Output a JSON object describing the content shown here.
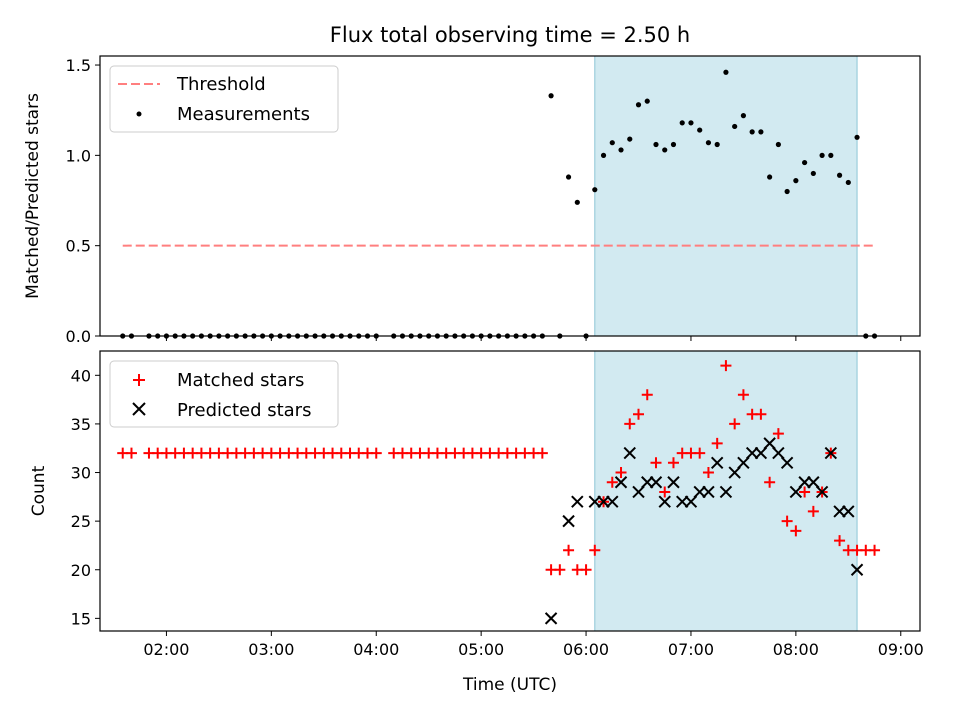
{
  "chart_data": {
    "title": "Flux total observing time = 2.50 h",
    "xlabel": "Time (UTC)",
    "x_ticks": [
      "02:00",
      "03:00",
      "04:00",
      "05:00",
      "06:00",
      "07:00",
      "08:00",
      "09:00"
    ],
    "shaded_span": [
      "06:05",
      "08:35"
    ],
    "colors": {
      "shade": "#add8e6",
      "threshold": "#ff7f7f",
      "measurement": "#000000",
      "matched": "#ff0000",
      "predicted": "#000000"
    },
    "panels": [
      {
        "type": "scatter",
        "ylabel": "Matched/Predicted stars",
        "ylim": [
          0,
          1.55
        ],
        "yticks": [
          "0.0",
          "0.5",
          "1.0",
          "1.5"
        ],
        "legend_location": "upper-left",
        "series": [
          {
            "name": "Threshold",
            "kind": "dashed-line",
            "points": [
              [
                "01:35",
                0.5
              ],
              [
                "08:45",
                0.5
              ]
            ]
          },
          {
            "name": "Measurements",
            "kind": "dots",
            "points": [
              [
                "01:35",
                0
              ],
              [
                "01:40",
                0
              ],
              [
                "01:50",
                0
              ],
              [
                "01:55",
                0
              ],
              [
                "02:00",
                0
              ],
              [
                "02:05",
                0
              ],
              [
                "02:10",
                0
              ],
              [
                "02:15",
                0
              ],
              [
                "02:20",
                0
              ],
              [
                "02:25",
                0
              ],
              [
                "02:30",
                0
              ],
              [
                "02:35",
                0
              ],
              [
                "02:40",
                0
              ],
              [
                "02:45",
                0
              ],
              [
                "02:50",
                0
              ],
              [
                "02:55",
                0
              ],
              [
                "03:00",
                0
              ],
              [
                "03:05",
                0
              ],
              [
                "03:10",
                0
              ],
              [
                "03:15",
                0
              ],
              [
                "03:20",
                0
              ],
              [
                "03:25",
                0
              ],
              [
                "03:30",
                0
              ],
              [
                "03:35",
                0
              ],
              [
                "03:40",
                0
              ],
              [
                "03:45",
                0
              ],
              [
                "03:50",
                0
              ],
              [
                "03:55",
                0
              ],
              [
                "04:00",
                0
              ],
              [
                "04:10",
                0
              ],
              [
                "04:15",
                0
              ],
              [
                "04:20",
                0
              ],
              [
                "04:25",
                0
              ],
              [
                "04:30",
                0
              ],
              [
                "04:35",
                0
              ],
              [
                "04:40",
                0
              ],
              [
                "04:45",
                0
              ],
              [
                "04:50",
                0
              ],
              [
                "04:55",
                0
              ],
              [
                "05:00",
                0
              ],
              [
                "05:05",
                0
              ],
              [
                "05:10",
                0
              ],
              [
                "05:15",
                0
              ],
              [
                "05:20",
                0
              ],
              [
                "05:25",
                0
              ],
              [
                "05:30",
                0
              ],
              [
                "05:35",
                0
              ],
              [
                "05:40",
                1.33
              ],
              [
                "05:45",
                0
              ],
              [
                "05:50",
                0.88
              ],
              [
                "05:55",
                0.74
              ],
              [
                "06:00",
                0
              ],
              [
                "06:05",
                0.81
              ],
              [
                "06:10",
                1.0
              ],
              [
                "06:15",
                1.07
              ],
              [
                "06:20",
                1.03
              ],
              [
                "06:25",
                1.09
              ],
              [
                "06:30",
                1.28
              ],
              [
                "06:35",
                1.3
              ],
              [
                "06:40",
                1.06
              ],
              [
                "06:45",
                1.03
              ],
              [
                "06:50",
                1.06
              ],
              [
                "06:55",
                1.18
              ],
              [
                "07:00",
                1.18
              ],
              [
                "07:05",
                1.14
              ],
              [
                "07:10",
                1.07
              ],
              [
                "07:15",
                1.06
              ],
              [
                "07:20",
                1.46
              ],
              [
                "07:25",
                1.16
              ],
              [
                "07:30",
                1.22
              ],
              [
                "07:35",
                1.13
              ],
              [
                "07:40",
                1.13
              ],
              [
                "07:45",
                0.88
              ],
              [
                "07:50",
                1.06
              ],
              [
                "07:55",
                0.8
              ],
              [
                "08:00",
                0.86
              ],
              [
                "08:05",
                0.96
              ],
              [
                "08:10",
                0.9
              ],
              [
                "08:15",
                1.0
              ],
              [
                "08:20",
                1.0
              ],
              [
                "08:25",
                0.89
              ],
              [
                "08:30",
                0.85
              ],
              [
                "08:35",
                1.1
              ],
              [
                "08:40",
                0
              ],
              [
                "08:45",
                0
              ]
            ]
          }
        ]
      },
      {
        "type": "scatter",
        "ylabel": "Count",
        "ylim": [
          13.7,
          42.5
        ],
        "yticks": [
          "15",
          "20",
          "25",
          "30",
          "35",
          "40"
        ],
        "legend_location": "upper-left",
        "series": [
          {
            "name": "Matched stars",
            "kind": "plus",
            "points": [
              [
                "01:35",
                32
              ],
              [
                "01:40",
                32
              ],
              [
                "01:50",
                32
              ],
              [
                "01:55",
                32
              ],
              [
                "02:00",
                32
              ],
              [
                "02:05",
                32
              ],
              [
                "02:10",
                32
              ],
              [
                "02:15",
                32
              ],
              [
                "02:20",
                32
              ],
              [
                "02:25",
                32
              ],
              [
                "02:30",
                32
              ],
              [
                "02:35",
                32
              ],
              [
                "02:40",
                32
              ],
              [
                "02:45",
                32
              ],
              [
                "02:50",
                32
              ],
              [
                "02:55",
                32
              ],
              [
                "03:00",
                32
              ],
              [
                "03:05",
                32
              ],
              [
                "03:10",
                32
              ],
              [
                "03:15",
                32
              ],
              [
                "03:20",
                32
              ],
              [
                "03:25",
                32
              ],
              [
                "03:30",
                32
              ],
              [
                "03:35",
                32
              ],
              [
                "03:40",
                32
              ],
              [
                "03:45",
                32
              ],
              [
                "03:50",
                32
              ],
              [
                "03:55",
                32
              ],
              [
                "04:00",
                32
              ],
              [
                "04:10",
                32
              ],
              [
                "04:15",
                32
              ],
              [
                "04:20",
                32
              ],
              [
                "04:25",
                32
              ],
              [
                "04:30",
                32
              ],
              [
                "04:35",
                32
              ],
              [
                "04:40",
                32
              ],
              [
                "04:45",
                32
              ],
              [
                "04:50",
                32
              ],
              [
                "04:55",
                32
              ],
              [
                "05:00",
                32
              ],
              [
                "05:05",
                32
              ],
              [
                "05:10",
                32
              ],
              [
                "05:15",
                32
              ],
              [
                "05:20",
                32
              ],
              [
                "05:25",
                32
              ],
              [
                "05:30",
                32
              ],
              [
                "05:35",
                32
              ],
              [
                "05:40",
                20
              ],
              [
                "05:45",
                20
              ],
              [
                "05:50",
                22
              ],
              [
                "05:55",
                20
              ],
              [
                "06:00",
                20
              ],
              [
                "06:05",
                22
              ],
              [
                "06:10",
                27
              ],
              [
                "06:15",
                29
              ],
              [
                "06:20",
                30
              ],
              [
                "06:25",
                35
              ],
              [
                "06:30",
                36
              ],
              [
                "06:35",
                38
              ],
              [
                "06:40",
                31
              ],
              [
                "06:45",
                28
              ],
              [
                "06:50",
                31
              ],
              [
                "06:55",
                32
              ],
              [
                "07:00",
                32
              ],
              [
                "07:05",
                32
              ],
              [
                "07:10",
                30
              ],
              [
                "07:15",
                33
              ],
              [
                "07:20",
                41
              ],
              [
                "07:25",
                35
              ],
              [
                "07:30",
                38
              ],
              [
                "07:35",
                36
              ],
              [
                "07:40",
                36
              ],
              [
                "07:45",
                29
              ],
              [
                "07:50",
                34
              ],
              [
                "07:55",
                25
              ],
              [
                "08:00",
                24
              ],
              [
                "08:05",
                28
              ],
              [
                "08:10",
                26
              ],
              [
                "08:15",
                28
              ],
              [
                "08:20",
                32
              ],
              [
                "08:25",
                23
              ],
              [
                "08:30",
                22
              ],
              [
                "08:35",
                22
              ],
              [
                "08:40",
                22
              ],
              [
                "08:45",
                22
              ]
            ]
          },
          {
            "name": "Predicted stars",
            "kind": "cross",
            "points": [
              [
                "05:40",
                15
              ],
              [
                "05:50",
                25
              ],
              [
                "05:55",
                27
              ],
              [
                "06:05",
                27
              ],
              [
                "06:10",
                27
              ],
              [
                "06:15",
                27
              ],
              [
                "06:20",
                29
              ],
              [
                "06:25",
                32
              ],
              [
                "06:30",
                28
              ],
              [
                "06:35",
                29
              ],
              [
                "06:40",
                29
              ],
              [
                "06:45",
                27
              ],
              [
                "06:50",
                29
              ],
              [
                "06:55",
                27
              ],
              [
                "07:00",
                27
              ],
              [
                "07:05",
                28
              ],
              [
                "07:10",
                28
              ],
              [
                "07:15",
                31
              ],
              [
                "07:20",
                28
              ],
              [
                "07:25",
                30
              ],
              [
                "07:30",
                31
              ],
              [
                "07:35",
                32
              ],
              [
                "07:40",
                32
              ],
              [
                "07:45",
                33
              ],
              [
                "07:50",
                32
              ],
              [
                "07:55",
                31
              ],
              [
                "08:00",
                28
              ],
              [
                "08:05",
                29
              ],
              [
                "08:10",
                29
              ],
              [
                "08:15",
                28
              ],
              [
                "08:20",
                32
              ],
              [
                "08:25",
                26
              ],
              [
                "08:30",
                26
              ],
              [
                "08:35",
                20
              ]
            ]
          }
        ]
      }
    ]
  }
}
